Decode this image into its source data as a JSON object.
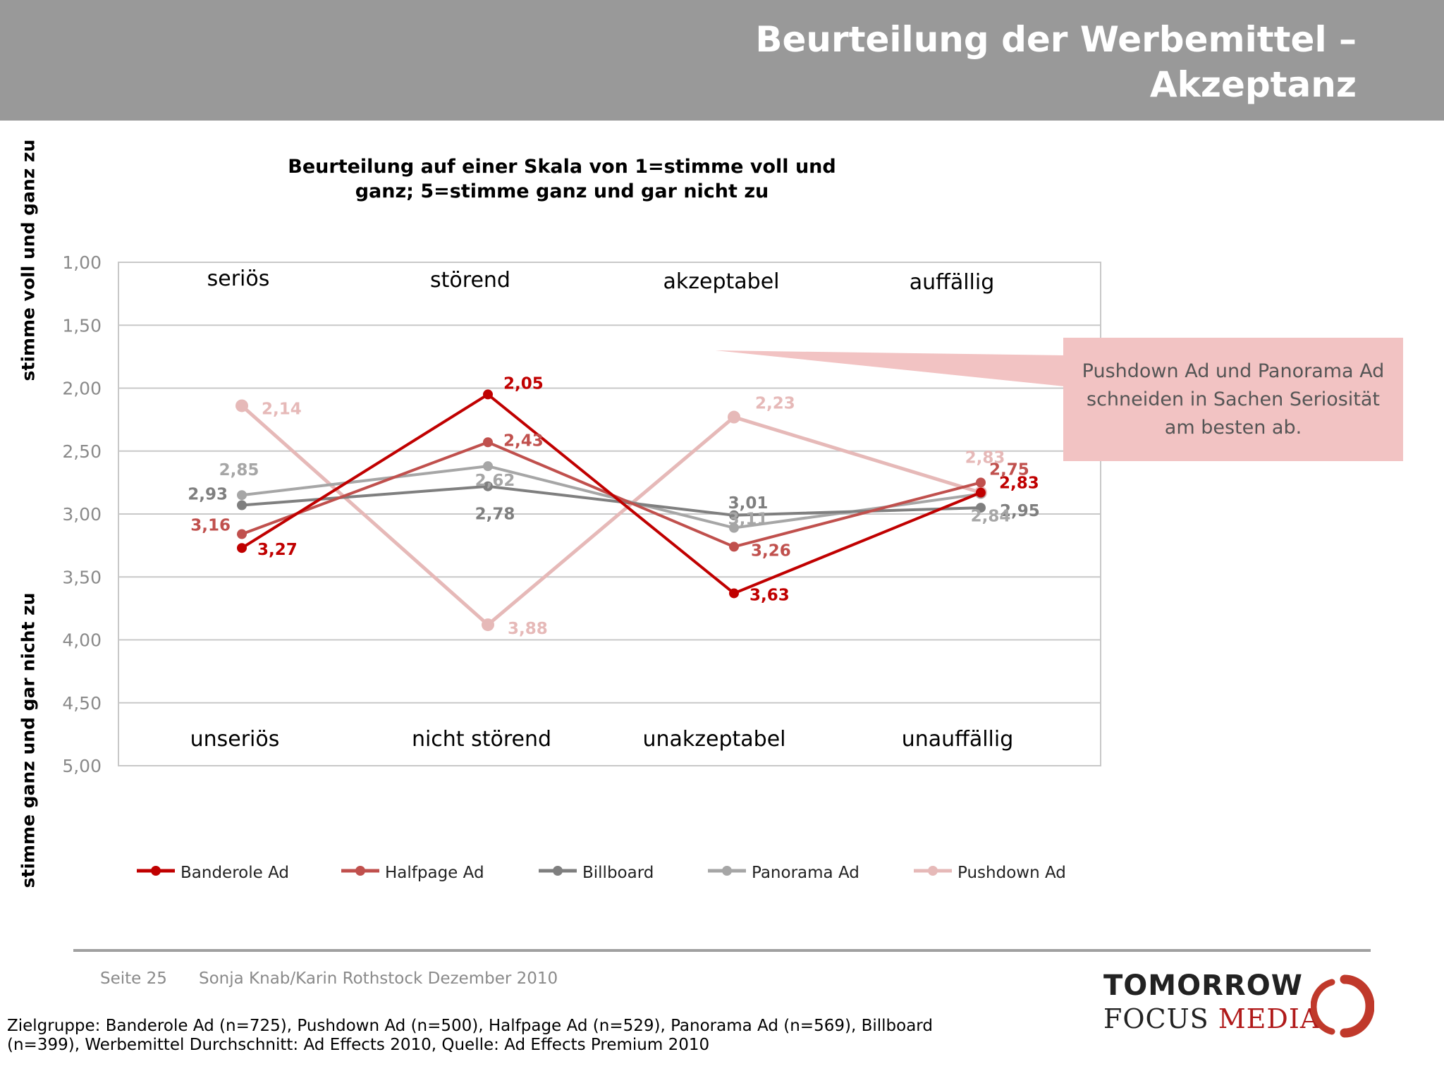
{
  "header": {
    "title_line1": "Beurteilung der Werbemittel –",
    "title_line2": "Akzeptanz"
  },
  "side_labels": {
    "top": "stimme voll und ganz zu",
    "bottom": "stimme ganz und gar nicht zu"
  },
  "callout": {
    "text": "Pushdown Ad und Panorama Ad schneiden in Sachen Seriosität am besten ab."
  },
  "footer": {
    "page": "Seite 25",
    "authors": "Sonja Knab/Karin Rothstock Dezember 2010",
    "note": "Zielgruppe: Banderole Ad (n=725), Pushdown Ad (n=500), Halfpage Ad (n=529), Panorama Ad (n=569), Billboard (n=399), Werbemittel Durchschnitt: Ad Effects 2010, Quelle: Ad Effects Premium 2010"
  },
  "logo": {
    "line1": "TOMORROW",
    "line2a": "FOCUS",
    "line2b": "MEDIA"
  },
  "chart_data": {
    "type": "line",
    "title": "Beurteilung auf einer Skala von 1=stimme voll und ganz; 5=stimme ganz und gar nicht zu",
    "ylim": [
      1,
      5
    ],
    "y_inverted": true,
    "y_ticks": [
      "1,00",
      "1,50",
      "2,00",
      "2,50",
      "3,00",
      "3,50",
      "4,00",
      "4,50",
      "5,00"
    ],
    "grid": true,
    "legend": "bottom",
    "categories_top": [
      "seriös",
      "störend",
      "akzeptabel",
      "auffällig"
    ],
    "categories_bottom": [
      "unseriös",
      "nicht störend",
      "unakzeptabel",
      "unauffällig"
    ],
    "series": [
      {
        "name": "Banderole Ad",
        "color": "#c00000",
        "values": [
          3.27,
          2.05,
          3.63,
          2.83
        ],
        "labels": [
          "3,27",
          "2,05",
          "3,63",
          "2,83"
        ]
      },
      {
        "name": "Halfpage Ad",
        "color": "#c0504d",
        "values": [
          3.16,
          2.43,
          3.26,
          2.75
        ],
        "labels": [
          "3,16",
          "2,43",
          "3,26",
          "2,75"
        ]
      },
      {
        "name": "Billboard",
        "color": "#7f7f7f",
        "values": [
          2.93,
          2.78,
          3.01,
          2.95
        ],
        "labels": [
          "2,93",
          "2,78",
          "3,01",
          "2,95"
        ]
      },
      {
        "name": "Panorama Ad",
        "color": "#a6a6a6",
        "values": [
          2.85,
          2.62,
          3.11,
          2.84
        ],
        "labels": [
          "2,85",
          "2,62",
          "3,11",
          "2,84"
        ]
      },
      {
        "name": "Pushdown Ad",
        "color": "#e6b9b8",
        "values": [
          2.14,
          3.88,
          2.23,
          2.83
        ],
        "labels": [
          "2,14",
          "3,88",
          "2,23",
          "2,83"
        ]
      }
    ]
  }
}
